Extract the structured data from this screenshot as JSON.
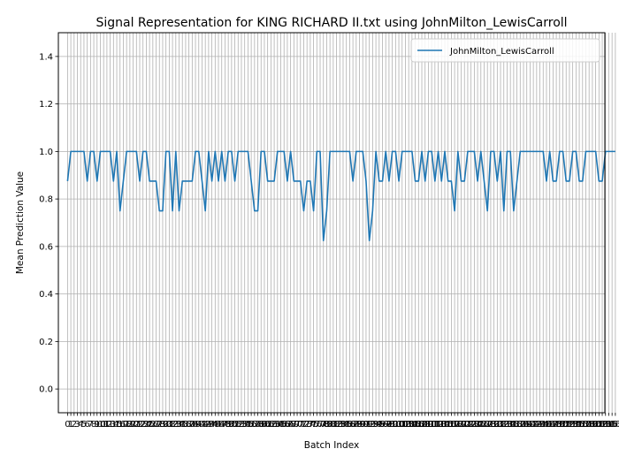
{
  "chart_data": {
    "type": "line",
    "title": "Signal Representation for KING RICHARD II.txt using JohnMilton_LewisCarroll",
    "xlabel": "Batch Index",
    "ylabel": "Mean Prediction Value",
    "xlim": [
      -2.8,
      163.8
    ],
    "ylim": [
      -0.1,
      1.5
    ],
    "yticks": [
      0.0,
      0.2,
      0.4,
      0.6,
      0.8,
      1.0,
      1.2,
      1.4
    ],
    "xtick_step": 1,
    "grid": true,
    "legend_position": "upper right",
    "series": [
      {
        "name": "JohnMilton_LewisCarroll",
        "color": "#1f77b4",
        "values": [
          0.875,
          1.0,
          1.0,
          1.0,
          1.0,
          1.0,
          0.875,
          1.0,
          1.0,
          0.875,
          1.0,
          1.0,
          1.0,
          1.0,
          0.875,
          1.0,
          0.75,
          0.875,
          1.0,
          1.0,
          1.0,
          1.0,
          0.875,
          1.0,
          1.0,
          0.875,
          0.875,
          0.875,
          0.75,
          0.75,
          1.0,
          1.0,
          0.75,
          1.0,
          0.75,
          0.875,
          0.875,
          0.875,
          0.875,
          1.0,
          1.0,
          0.875,
          0.75,
          1.0,
          0.875,
          1.0,
          0.875,
          1.0,
          0.875,
          1.0,
          1.0,
          0.875,
          1.0,
          1.0,
          1.0,
          1.0,
          0.875,
          0.75,
          0.75,
          1.0,
          1.0,
          0.875,
          0.875,
          0.875,
          1.0,
          1.0,
          1.0,
          0.875,
          1.0,
          0.875,
          0.875,
          0.875,
          0.75,
          0.875,
          0.875,
          0.75,
          1.0,
          1.0,
          0.625,
          0.75,
          1.0,
          1.0,
          1.0,
          1.0,
          1.0,
          1.0,
          1.0,
          0.875,
          1.0,
          1.0,
          1.0,
          0.875,
          0.625,
          0.75,
          1.0,
          0.875,
          0.875,
          1.0,
          0.875,
          1.0,
          1.0,
          0.875,
          1.0,
          1.0,
          1.0,
          1.0,
          0.875,
          0.875,
          1.0,
          0.875,
          1.0,
          1.0,
          0.875,
          1.0,
          0.875,
          1.0,
          0.875,
          0.875,
          0.75,
          1.0,
          0.875,
          0.875,
          1.0,
          1.0,
          1.0,
          0.875,
          1.0,
          0.875,
          0.75,
          1.0,
          1.0,
          0.875,
          1.0,
          0.75,
          1.0,
          1.0,
          0.75,
          0.875,
          1.0,
          1.0,
          1.0,
          1.0,
          1.0,
          1.0,
          1.0,
          1.0,
          0.875,
          1.0,
          0.875,
          0.875,
          1.0,
          1.0,
          0.875,
          0.875,
          1.0,
          1.0,
          0.875,
          0.875,
          1.0,
          1.0,
          1.0,
          1.0,
          0.875,
          0.875,
          1.0,
          1.0,
          1.0,
          1.0
        ]
      }
    ]
  }
}
